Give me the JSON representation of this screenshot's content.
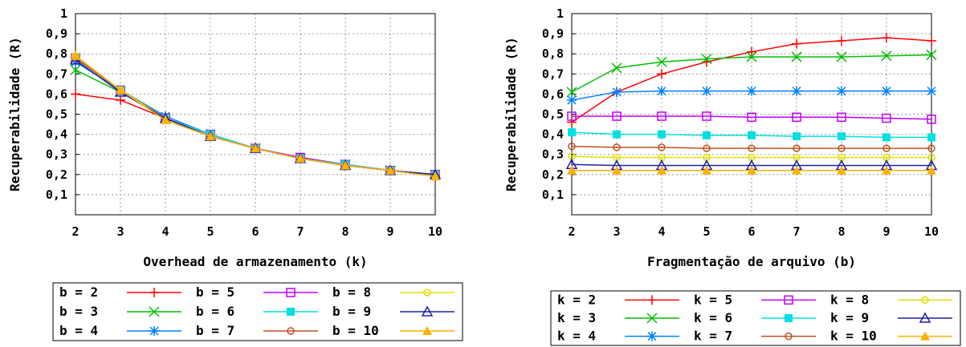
{
  "chart_data": [
    {
      "type": "line",
      "xlabel": "Overhead de armazenamento (k)",
      "ylabel": "Recuperabilidade (R)",
      "x": [
        2,
        3,
        4,
        5,
        6,
        7,
        8,
        9,
        10
      ],
      "xlim": [
        2,
        10
      ],
      "ylim": [
        0,
        1
      ],
      "yticks": [
        "0,1",
        "0,2",
        "0,3",
        "0,4",
        "0,5",
        "0,6",
        "0,7",
        "0,8",
        "0,9",
        "1"
      ],
      "grid": true,
      "legend_position": "bottom",
      "series": [
        {
          "name": "b = 2",
          "color": "#ff0000",
          "marker": "plus",
          "values": [
            0.6,
            0.57,
            0.48,
            0.39,
            0.33,
            0.28,
            0.245,
            0.22,
            0.2
          ]
        },
        {
          "name": "b = 3",
          "color": "#00c000",
          "marker": "x",
          "values": [
            0.72,
            0.61,
            0.48,
            0.4,
            0.33,
            0.28,
            0.25,
            0.22,
            0.2
          ]
        },
        {
          "name": "b = 4",
          "color": "#0080ff",
          "marker": "asterisk",
          "values": [
            0.76,
            0.62,
            0.49,
            0.4,
            0.33,
            0.285,
            0.25,
            0.22,
            0.2
          ]
        },
        {
          "name": "b = 5",
          "color": "#c000ff",
          "marker": "square-open",
          "values": [
            0.78,
            0.62,
            0.48,
            0.4,
            0.33,
            0.285,
            0.25,
            0.22,
            0.2
          ]
        },
        {
          "name": "b = 6",
          "color": "#00e0e0",
          "marker": "square-filled",
          "values": [
            0.78,
            0.62,
            0.48,
            0.4,
            0.33,
            0.28,
            0.25,
            0.22,
            0.2
          ]
        },
        {
          "name": "b = 7",
          "color": "#c05020",
          "marker": "circle-open",
          "values": [
            0.78,
            0.62,
            0.48,
            0.39,
            0.33,
            0.28,
            0.245,
            0.22,
            0.2
          ]
        },
        {
          "name": "b = 8",
          "color": "#e0e000",
          "marker": "circle-open",
          "values": [
            0.79,
            0.62,
            0.48,
            0.39,
            0.33,
            0.28,
            0.245,
            0.22,
            0.2
          ]
        },
        {
          "name": "b = 9",
          "color": "#2020a0",
          "marker": "triangle-open",
          "values": [
            0.77,
            0.61,
            0.48,
            0.39,
            0.33,
            0.28,
            0.245,
            0.22,
            0.2
          ]
        },
        {
          "name": "b = 10",
          "color": "#ffb000",
          "marker": "triangle-filled",
          "values": [
            0.79,
            0.62,
            0.47,
            0.39,
            0.33,
            0.28,
            0.245,
            0.22,
            0.19
          ]
        }
      ]
    },
    {
      "type": "line",
      "xlabel": "Fragmentação de arquivo (b)",
      "ylabel": "Recuperabilidade (R)",
      "x": [
        2,
        3,
        4,
        5,
        6,
        7,
        8,
        9,
        10
      ],
      "xlim": [
        2,
        10
      ],
      "ylim": [
        0,
        1
      ],
      "yticks": [
        "0,1",
        "0,2",
        "0,3",
        "0,4",
        "0,5",
        "0,6",
        "0,7",
        "0,8",
        "0,9",
        "1"
      ],
      "grid": true,
      "legend_position": "bottom",
      "series": [
        {
          "name": "k = 2",
          "color": "#ff0000",
          "marker": "plus",
          "values": [
            0.46,
            0.61,
            0.7,
            0.76,
            0.81,
            0.85,
            0.865,
            0.88,
            0.865
          ]
        },
        {
          "name": "k = 3",
          "color": "#00c000",
          "marker": "x",
          "values": [
            0.61,
            0.73,
            0.76,
            0.775,
            0.785,
            0.785,
            0.785,
            0.79,
            0.795
          ]
        },
        {
          "name": "k = 4",
          "color": "#0080ff",
          "marker": "asterisk",
          "values": [
            0.57,
            0.61,
            0.615,
            0.615,
            0.615,
            0.615,
            0.615,
            0.615,
            0.615
          ]
        },
        {
          "name": "k = 5",
          "color": "#c000ff",
          "marker": "square-open",
          "values": [
            0.49,
            0.49,
            0.49,
            0.49,
            0.485,
            0.485,
            0.485,
            0.48,
            0.475
          ]
        },
        {
          "name": "k = 6",
          "color": "#00e0e0",
          "marker": "square-filled",
          "values": [
            0.41,
            0.4,
            0.4,
            0.395,
            0.395,
            0.39,
            0.39,
            0.385,
            0.385
          ]
        },
        {
          "name": "k = 7",
          "color": "#c05020",
          "marker": "circle-open",
          "values": [
            0.34,
            0.335,
            0.335,
            0.33,
            0.33,
            0.33,
            0.33,
            0.33,
            0.33
          ]
        },
        {
          "name": "k = 8",
          "color": "#e0e000",
          "marker": "circle-open",
          "values": [
            0.29,
            0.285,
            0.285,
            0.285,
            0.285,
            0.285,
            0.285,
            0.285,
            0.285
          ]
        },
        {
          "name": "k = 9",
          "color": "#2020a0",
          "marker": "triangle-open",
          "values": [
            0.25,
            0.245,
            0.245,
            0.245,
            0.245,
            0.245,
            0.245,
            0.245,
            0.245
          ]
        },
        {
          "name": "k = 10",
          "color": "#ffb000",
          "marker": "triangle-filled",
          "values": [
            0.22,
            0.22,
            0.22,
            0.22,
            0.22,
            0.22,
            0.22,
            0.22,
            0.22
          ]
        }
      ]
    }
  ]
}
